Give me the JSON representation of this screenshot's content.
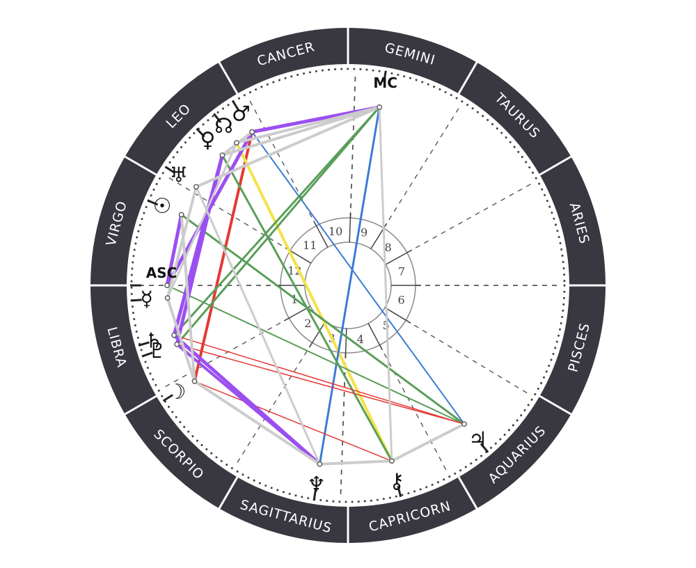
{
  "signs": [
    {
      "label": "ARIES",
      "start": 0
    },
    {
      "label": "TAURUS",
      "start": 30
    },
    {
      "label": "GEMINI",
      "start": 60
    },
    {
      "label": "CANCER",
      "start": 90
    },
    {
      "label": "LEO",
      "start": 120
    },
    {
      "label": "VIRGO",
      "start": 150
    },
    {
      "label": "LIBRA",
      "start": 180
    },
    {
      "label": "SCORPIO",
      "start": 210
    },
    {
      "label": "SAGITTARIUS",
      "start": 240
    },
    {
      "label": "CAPRICORN",
      "start": 270
    },
    {
      "label": "AQUARIUS",
      "start": 300
    },
    {
      "label": "PISCES",
      "start": 330
    }
  ],
  "houses": [
    {
      "label": "1",
      "cusp": 180
    },
    {
      "label": "2",
      "cusp": 209
    },
    {
      "label": "3",
      "cusp": 238
    },
    {
      "label": "4",
      "cusp": 268
    },
    {
      "label": "5",
      "cusp": 298
    },
    {
      "label": "6",
      "cusp": 329
    },
    {
      "label": "7",
      "cusp": 0
    },
    {
      "label": "8",
      "cusp": 29
    },
    {
      "label": "9",
      "cusp": 58
    },
    {
      "label": "10",
      "cusp": 88
    },
    {
      "label": "11",
      "cusp": 118
    },
    {
      "label": "12",
      "cusp": 149
    }
  ],
  "angles": [
    {
      "label": "ASC",
      "angle": 180
    },
    {
      "label": "MC",
      "angle": 80
    }
  ],
  "planets": [
    {
      "id": "mc",
      "glyph": "",
      "angle": 80
    },
    {
      "id": "mars",
      "glyph": "♂",
      "angle": 122
    },
    {
      "id": "north-node",
      "glyph": "☊",
      "angle": 128
    },
    {
      "id": "venus",
      "glyph": "♀",
      "angle": 134
    },
    {
      "id": "uranus",
      "glyph": "♅",
      "angle": 147
    },
    {
      "id": "sun",
      "glyph": "☉",
      "angle": 157
    },
    {
      "id": "asc",
      "glyph": "",
      "angle": 180
    },
    {
      "id": "mercury",
      "glyph": "☿",
      "angle": 184
    },
    {
      "id": "saturn",
      "glyph": "♄",
      "angle": 196
    },
    {
      "id": "pluto",
      "glyph": "♇",
      "angle": 199
    },
    {
      "id": "moon",
      "glyph": "☽",
      "angle": 212
    },
    {
      "id": "neptune",
      "glyph": "♆",
      "angle": 261
    },
    {
      "id": "chiron",
      "glyph": "⚷",
      "angle": 284
    },
    {
      "id": "jupiter",
      "glyph": "♃",
      "angle": 310
    }
  ],
  "aspects": [
    {
      "from": "mars",
      "to": "moon",
      "color": "#e53935",
      "width": 4
    },
    {
      "from": "north-node",
      "to": "chiron",
      "color": "#f4e24a",
      "width": 4
    },
    {
      "from": "mars",
      "to": "jupiter",
      "color": "#3a7bd5",
      "width": 2
    },
    {
      "from": "mc",
      "to": "neptune",
      "color": "#3a7bd5",
      "width": 3
    },
    {
      "from": "mc",
      "to": "pluto",
      "color": "#5a9e5a",
      "width": 3
    },
    {
      "from": "mc",
      "to": "saturn",
      "color": "#5a9e5a",
      "width": 3
    },
    {
      "from": "venus",
      "to": "chiron",
      "color": "#5a9e5a",
      "width": 3
    },
    {
      "from": "sun",
      "to": "jupiter",
      "color": "#5a9e5a",
      "width": 3
    },
    {
      "from": "asc",
      "to": "jupiter",
      "color": "#5a9e5a",
      "width": 2
    },
    {
      "from": "pluto",
      "to": "jupiter",
      "color": "#e53935",
      "width": 1.5
    },
    {
      "from": "saturn",
      "to": "jupiter",
      "color": "#e53935",
      "width": 1.5
    },
    {
      "from": "moon",
      "to": "chiron",
      "color": "#e53935",
      "width": 1.5
    },
    {
      "from": "mars",
      "to": "asc",
      "color": "#9b4ff0",
      "width": 5
    },
    {
      "from": "mc",
      "to": "mars",
      "color": "#9b4ff0",
      "width": 5
    },
    {
      "from": "venus",
      "to": "pluto",
      "color": "#9b4ff0",
      "width": 5
    },
    {
      "from": "venus",
      "to": "saturn",
      "color": "#9b4ff0",
      "width": 5
    },
    {
      "from": "asc",
      "to": "sun",
      "color": "#9b4ff0",
      "width": 5
    },
    {
      "from": "saturn",
      "to": "neptune",
      "color": "#9b4ff0",
      "width": 5
    },
    {
      "from": "pluto",
      "to": "neptune",
      "color": "#9b4ff0",
      "width": 4
    },
    {
      "from": "mc",
      "to": "north-node",
      "color": "#cccccc",
      "width": 4
    },
    {
      "from": "mc",
      "to": "venus",
      "color": "#cccccc",
      "width": 4
    },
    {
      "from": "mc",
      "to": "uranus",
      "color": "#cccccc",
      "width": 4
    },
    {
      "from": "mars",
      "to": "venus",
      "color": "#cccccc",
      "width": 4
    },
    {
      "from": "uranus",
      "to": "mercury",
      "color": "#cccccc",
      "width": 4
    },
    {
      "from": "sun",
      "to": "moon",
      "color": "#cccccc",
      "width": 4
    },
    {
      "from": "mercury",
      "to": "moon",
      "color": "#cccccc",
      "width": 4
    },
    {
      "from": "moon",
      "to": "neptune",
      "color": "#cccccc",
      "width": 4
    },
    {
      "from": "neptune",
      "to": "chiron",
      "color": "#cccccc",
      "width": 4
    },
    {
      "from": "chiron",
      "to": "jupiter",
      "color": "#cccccc",
      "width": 4
    },
    {
      "from": "mc",
      "to": "chiron",
      "color": "#cccccc",
      "width": 3
    },
    {
      "from": "uranus",
      "to": "neptune",
      "color": "#cccccc",
      "width": 3
    },
    {
      "from": "north-node",
      "to": "mercury",
      "color": "#cccccc",
      "width": 3
    }
  ],
  "colors": {
    "ring": "#393841",
    "ring_text": "#ffffff",
    "divider": "#ffffff",
    "axis": "#555555",
    "house_ring": "#888888"
  }
}
